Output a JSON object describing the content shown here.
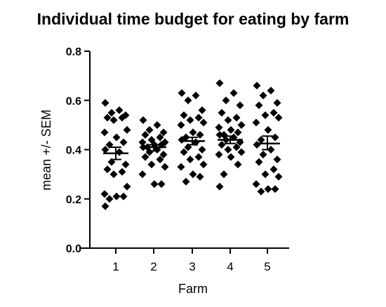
{
  "chart_data": {
    "type": "scatter",
    "title": "Individual time budget for eating by farm",
    "xlabel": "Farm",
    "ylabel": "mean +/- SEM",
    "ylim": [
      0.0,
      0.8
    ],
    "yticks": [
      "0.0",
      "0.2",
      "0.4",
      "0.6",
      "0.8"
    ],
    "categories": [
      "1",
      "2",
      "3",
      "4",
      "5"
    ],
    "marker": "diamond",
    "marker_color": "#000000",
    "grid": false,
    "groups": [
      {
        "category": "1",
        "points": [
          0.59,
          0.56,
          0.55,
          0.54,
          0.53,
          0.53,
          0.52,
          0.48,
          0.47,
          0.45,
          0.43,
          0.42,
          0.4,
          0.39,
          0.35,
          0.34,
          0.32,
          0.31,
          0.3,
          0.25,
          0.22,
          0.21,
          0.21,
          0.2,
          0.17
        ],
        "mean": 0.385,
        "sem_upper": 0.41,
        "sem_lower": 0.36
      },
      {
        "category": "2",
        "points": [
          0.52,
          0.5,
          0.48,
          0.47,
          0.46,
          0.45,
          0.44,
          0.43,
          0.43,
          0.42,
          0.42,
          0.41,
          0.41,
          0.4,
          0.39,
          0.38,
          0.37,
          0.36,
          0.34,
          0.33,
          0.3,
          0.26,
          0.26
        ],
        "mean": 0.41,
        "sem_upper": 0.42,
        "sem_lower": 0.395
      },
      {
        "category": "3",
        "points": [
          0.63,
          0.62,
          0.6,
          0.56,
          0.54,
          0.53,
          0.52,
          0.51,
          0.5,
          0.47,
          0.46,
          0.45,
          0.44,
          0.43,
          0.41,
          0.4,
          0.39,
          0.37,
          0.36,
          0.34,
          0.33,
          0.3,
          0.29,
          0.27
        ],
        "mean": 0.435,
        "sem_upper": 0.45,
        "sem_lower": 0.42
      },
      {
        "category": "4",
        "points": [
          0.67,
          0.63,
          0.6,
          0.58,
          0.55,
          0.53,
          0.52,
          0.5,
          0.49,
          0.48,
          0.47,
          0.46,
          0.46,
          0.45,
          0.44,
          0.43,
          0.42,
          0.41,
          0.4,
          0.39,
          0.38,
          0.37,
          0.34,
          0.3,
          0.25
        ],
        "mean": 0.44,
        "sem_upper": 0.455,
        "sem_lower": 0.425
      },
      {
        "category": "5",
        "points": [
          0.66,
          0.64,
          0.62,
          0.59,
          0.58,
          0.55,
          0.54,
          0.53,
          0.51,
          0.48,
          0.45,
          0.44,
          0.42,
          0.4,
          0.38,
          0.36,
          0.35,
          0.32,
          0.3,
          0.29,
          0.26,
          0.24,
          0.24,
          0.23
        ],
        "mean": 0.425,
        "sem_upper": 0.455,
        "sem_lower": 0.4
      }
    ]
  }
}
